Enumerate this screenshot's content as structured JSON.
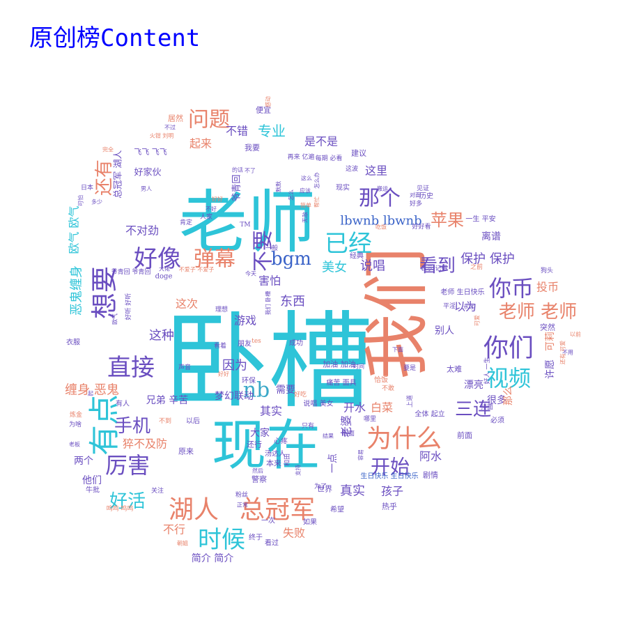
{
  "title": "原创榜Content",
  "title_color": "#0000ff",
  "palette": {
    "cyan": "#2ec4d8",
    "salmon": "#e8826a",
    "purple": "#6a4ec0",
    "blue": "#3a63c8",
    "teal": "#3aa8c8"
  },
  "words": [
    {
      "text": "卧槽"
    },
    {
      "text": "老师"
    },
    {
      "text": "我们"
    },
    {
      "text": "现在"
    },
    {
      "text": "想要"
    },
    {
      "text": "有点"
    },
    {
      "text": "好像"
    },
    {
      "text": "弹幕"
    },
    {
      "text": "不要"
    },
    {
      "text": "那个"
    },
    {
      "text": "已经"
    },
    {
      "text": "你币"
    },
    {
      "text": "你们"
    },
    {
      "text": "视频"
    },
    {
      "text": "直接"
    },
    {
      "text": "湖人"
    },
    {
      "text": "总冠军"
    },
    {
      "text": "为什么"
    },
    {
      "text": "时候"
    },
    {
      "text": "厉害"
    },
    {
      "text": "开始"
    },
    {
      "text": "问题"
    },
    {
      "text": "还有"
    },
    {
      "text": "bgm"
    },
    {
      "text": "看到"
    },
    {
      "text": "老师 老师"
    },
    {
      "text": "三连"
    },
    {
      "text": "苹果"
    },
    {
      "text": "nb"
    },
    {
      "text": "手机"
    },
    {
      "text": "好活"
    },
    {
      "text": "专业"
    },
    {
      "text": "是不是"
    },
    {
      "text": "起来"
    },
    {
      "text": "不错"
    },
    {
      "text": "这里"
    },
    {
      "text": "lbwnb lbwnb"
    },
    {
      "text": "美女"
    },
    {
      "text": "说唱"
    },
    {
      "text": "保护 保护"
    },
    {
      "text": "投币"
    },
    {
      "text": "不对劲"
    },
    {
      "text": "害怕"
    },
    {
      "text": "东西"
    },
    {
      "text": "游戏"
    },
    {
      "text": "这次"
    },
    {
      "text": "这种"
    },
    {
      "text": "因为"
    },
    {
      "text": "恶鬼缠身"
    },
    {
      "text": "缠身 恶鬼"
    },
    {
      "text": "欧气 欧气"
    },
    {
      "text": "猝不及防"
    },
    {
      "text": "兄弟 辛苦"
    },
    {
      "text": "梦幻联动"
    },
    {
      "text": "其实"
    },
    {
      "text": "开水"
    },
    {
      "text": "白菜"
    },
    {
      "text": "老婆"
    },
    {
      "text": "需要"
    },
    {
      "text": "一点"
    },
    {
      "text": "真实"
    },
    {
      "text": "孩子"
    },
    {
      "text": "阿水"
    },
    {
      "text": "失败"
    },
    {
      "text": "不行"
    },
    {
      "text": "简介 简介"
    },
    {
      "text": "两个"
    },
    {
      "text": "他们"
    },
    {
      "text": "大家"
    },
    {
      "text": "以为"
    },
    {
      "text": "别人"
    },
    {
      "text": "很多"
    },
    {
      "text": "那么"
    },
    {
      "text": "可莉"
    },
    {
      "text": "许愿"
    },
    {
      "text": "离谱"
    },
    {
      "text": "总冠军 湖人"
    },
    {
      "text": "好家伙"
    },
    {
      "text": "爷青回"
    },
    {
      "text": "飞飞 飞飞"
    },
    {
      "text": "我要"
    },
    {
      "text": "便宜"
    },
    {
      "text": "居然"
    },
    {
      "text": "建议"
    },
    {
      "text": "现实"
    },
    {
      "text": "历史"
    },
    {
      "text": "一生 平安"
    },
    {
      "text": "老师 生日快乐"
    },
    {
      "text": "生日快乐 生日快乐"
    },
    {
      "text": "漂亮"
    },
    {
      "text": "突然"
    },
    {
      "text": "太难"
    },
    {
      "text": "加油 加油"
    },
    {
      "text": "痛苦 面具"
    },
    {
      "text": "说唱 美女"
    },
    {
      "text": "全体 起立"
    },
    {
      "text": "前面"
    },
    {
      "text": "必须"
    },
    {
      "text": "世界"
    },
    {
      "text": "警察"
    },
    {
      "text": "剧情"
    },
    {
      "text": "心疼"
    },
    {
      "text": "本来"
    },
    {
      "text": "原来"
    },
    {
      "text": "还行"
    },
    {
      "text": "有人"
    },
    {
      "text": "以后"
    },
    {
      "text": "不到"
    },
    {
      "text": "为啥"
    },
    {
      "text": "牛批"
    },
    {
      "text": "关注"
    },
    {
      "text": "呜呜 呜呜"
    },
    {
      "text": "希望"
    },
    {
      "text": "如果"
    },
    {
      "text": "一次"
    },
    {
      "text": "终于"
    },
    {
      "text": "看过"
    },
    {
      "text": "热乎"
    },
    {
      "text": "经典"
    },
    {
      "text": "表示 记得"
    },
    {
      "text": "狗头"
    },
    {
      "text": "爷青回 爷青回"
    },
    {
      "text": "doge"
    },
    {
      "text": "衣服"
    },
    {
      "text": "好听 好听"
    },
    {
      "text": "朋友"
    },
    {
      "text": "成功"
    },
    {
      "text": "理想"
    },
    {
      "text": "肯定"
    },
    {
      "text": "人家"
    },
    {
      "text": "不好"
    },
    {
      "text": "日本"
    },
    {
      "text": "多少"
    },
    {
      "text": "男人"
    },
    {
      "text": "好多"
    },
    {
      "text": "对面"
    },
    {
      "text": "好好看"
    },
    {
      "text": "吃饭"
    },
    {
      "text": "见证"
    },
    {
      "text": "平淫"
    },
    {
      "text": "排面"
    },
    {
      "text": "tes"
    },
    {
      "text": "一般"
    },
    {
      "text": "今天"
    },
    {
      "text": "我们 卧槽"
    },
    {
      "text": "看着"
    },
    {
      "text": "声音"
    },
    {
      "text": "环保"
    },
    {
      "text": "好好"
    },
    {
      "text": "好吃"
    },
    {
      "text": "只有"
    },
    {
      "text": "哪里"
    },
    {
      "text": "要是"
    },
    {
      "text": "下面"
    },
    {
      "text": "炼金"
    },
    {
      "text": "老板"
    },
    {
      "text": "之前"
    },
    {
      "text": "不用"
    },
    {
      "text": "以前"
    },
    {
      "text": "好人 一生"
    },
    {
      "text": "可爱"
    },
    {
      "text": "永远"
    },
    {
      "text": "恰饭"
    },
    {
      "text": "不敢"
    },
    {
      "text": "还有 可爱"
    },
    {
      "text": "为了"
    },
    {
      "text": "支持"
    },
    {
      "text": "容易"
    },
    {
      "text": "朝姐"
    },
    {
      "text": "正常"
    },
    {
      "text": "粉丝"
    },
    {
      "text": "然后"
    },
    {
      "text": "和田"
    },
    {
      "text": "汤达人"
    },
    {
      "text": "结果"
    },
    {
      "text": "上道"
    },
    {
      "text": "时间"
    },
    {
      "text": "后面"
    },
    {
      "text": "不爱子 不爱子"
    },
    {
      "text": "大佬"
    },
    {
      "text": "再来 亿遍"
    },
    {
      "text": "每期 必看"
    },
    {
      "text": "这波"
    },
    {
      "text": "怎么办"
    },
    {
      "text": "不过"
    },
    {
      "text": "火钳 刘明"
    },
    {
      "text": "完全"
    },
    {
      "text": "感动"
    },
    {
      "text": "简单"
    },
    {
      "text": "怎么"
    },
    {
      "text": "应该"
    },
    {
      "text": "帮忙"
    },
    {
      "text": "默默"
    },
    {
      "text": "可怕"
    },
    {
      "text": "TM"
    },
    {
      "text": "欧气"
    },
    {
      "text": "起"
    },
    {
      "text": "不了"
    },
    {
      "text": "的话"
    },
    {
      "text": "好好"
    },
    {
      "text": "这么"
    },
    {
      "text": "搬运"
    },
    {
      "text": "无敌"
    }
  ]
}
